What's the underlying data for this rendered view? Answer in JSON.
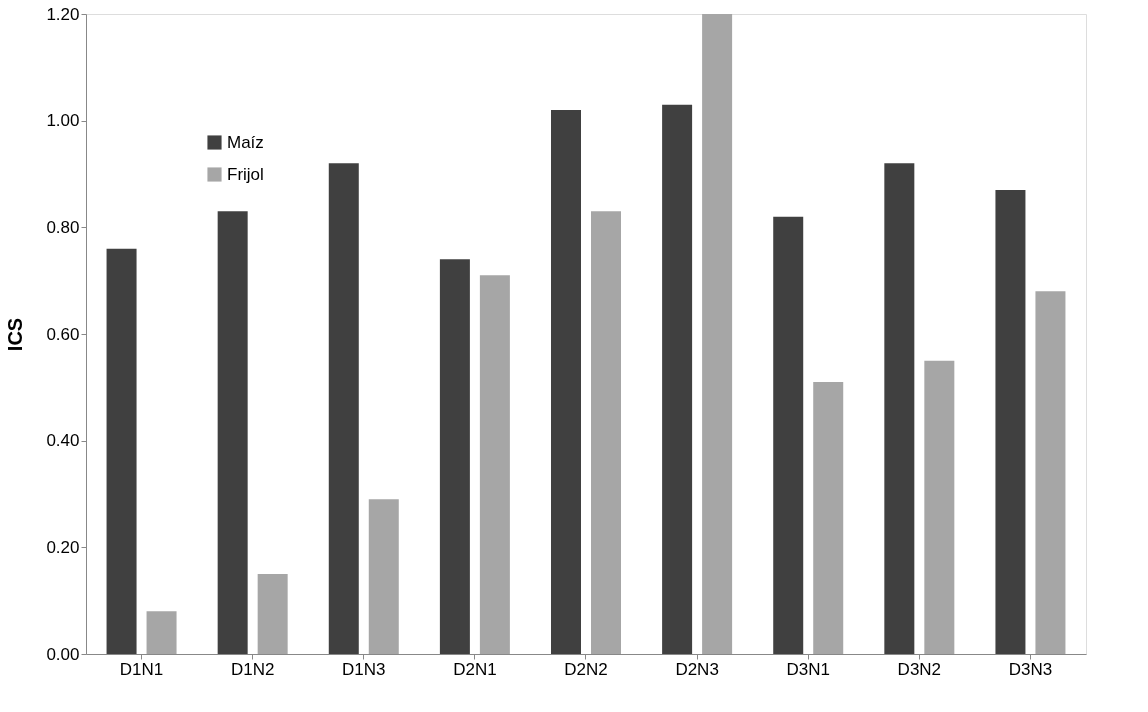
{
  "chart_data": {
    "type": "bar",
    "ylabel": "ICS",
    "categories": [
      "D1N1",
      "D1N2",
      "D1N3",
      "D2N1",
      "D2N2",
      "D2N3",
      "D3N1",
      "D3N2",
      "D3N3"
    ],
    "series": [
      {
        "name": "Maíz",
        "color": "#404040",
        "values": [
          0.76,
          0.83,
          0.92,
          0.74,
          1.02,
          1.03,
          0.82,
          0.92,
          0.87
        ]
      },
      {
        "name": "Frijol",
        "color": "#a6a6a6",
        "values": [
          0.08,
          0.15,
          0.29,
          0.71,
          0.83,
          1.2,
          0.51,
          0.55,
          0.68
        ]
      }
    ],
    "ylim": [
      0,
      1.2
    ],
    "yticks": [
      {
        "value": 0,
        "label": "0.00"
      },
      {
        "value": 0.2,
        "label": "0.20"
      },
      {
        "value": 0.4,
        "label": "0.40"
      },
      {
        "value": 0.6,
        "label": "0.60"
      },
      {
        "value": 0.8,
        "label": "0.80"
      },
      {
        "value": 1.0,
        "label": "1.00"
      },
      {
        "value": 1.2,
        "label": "1.20"
      }
    ],
    "grid": false,
    "legend": "top left"
  }
}
